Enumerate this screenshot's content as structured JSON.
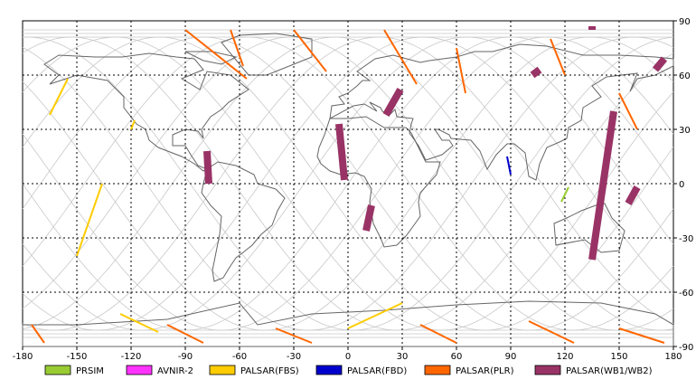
{
  "map": {
    "projection": "equirectangular",
    "lon_range": [
      -180,
      180
    ],
    "lat_range": [
      -90,
      90
    ],
    "lon_ticks": [
      -180,
      -150,
      -120,
      -90,
      -60,
      -30,
      0,
      30,
      60,
      90,
      120,
      150,
      180
    ],
    "lat_ticks": [
      90,
      60,
      30,
      0,
      -30,
      -60,
      -90
    ],
    "grid": "dotted",
    "colors": {
      "background": "#ffffff",
      "coast": "#666666",
      "orbit_track": "#c8c8c8",
      "grid": "#000000"
    }
  },
  "legend": {
    "items": [
      {
        "label": "PRSIM",
        "color": "#99cc33"
      },
      {
        "label": "AVNIR-2",
        "color": "#ff33ff"
      },
      {
        "label": "PALSAR(FBS)",
        "color": "#ffcc00"
      },
      {
        "label": "PALSAR(FBD)",
        "color": "#0000cc"
      },
      {
        "label": "PALSAR(PLR)",
        "color": "#ff6600"
      },
      {
        "label": "PALSAR(WB1/WB2)",
        "color": "#993366"
      }
    ]
  },
  "acquisitions": {
    "wb": [
      {
        "lon": [
          -77,
          -78
        ],
        "lat": [
          0,
          18
        ]
      },
      {
        "lon": [
          -2,
          -5
        ],
        "lat": [
          2,
          33
        ]
      },
      {
        "lon": [
          29,
          21
        ],
        "lat": [
          52,
          38
        ]
      },
      {
        "lon": [
          13,
          10
        ],
        "lat": [
          -12,
          -26
        ]
      },
      {
        "lon": [
          147,
          135
        ],
        "lat": [
          40,
          -42
        ]
      },
      {
        "lon": [
          106,
          102
        ],
        "lat": [
          63,
          60
        ]
      },
      {
        "lon": [
          175,
          170
        ],
        "lat": [
          69,
          63
        ]
      },
      {
        "lon": [
          160,
          155
        ],
        "lat": [
          -2,
          -11
        ]
      },
      {
        "lon": [
          135,
          135
        ],
        "lat": [
          87,
          85
        ]
      }
    ],
    "fbs": [
      {
        "lon": [
          -155,
          -165
        ],
        "lat": [
          58,
          38
        ]
      },
      {
        "lon": [
          -120,
          -118
        ],
        "lat": [
          30,
          35
        ]
      },
      {
        "lon": [
          -136,
          -150
        ],
        "lat": [
          0,
          -40
        ]
      },
      {
        "lon": [
          -126,
          -105
        ],
        "lat": [
          -72,
          -82
        ]
      },
      {
        "lon": [
          30,
          0
        ],
        "lat": [
          -66,
          -80
        ]
      }
    ],
    "fbd": [
      {
        "lon": [
          88,
          90
        ],
        "lat": [
          15,
          5
        ]
      }
    ],
    "plr": [
      {
        "lon": [
          -90,
          -56
        ],
        "lat": [
          85,
          58
        ]
      },
      {
        "lon": [
          -65,
          -58
        ],
        "lat": [
          85,
          65
        ]
      },
      {
        "lon": [
          -30,
          -12
        ],
        "lat": [
          85,
          62
        ]
      },
      {
        "lon": [
          20,
          38
        ],
        "lat": [
          85,
          55
        ]
      },
      {
        "lon": [
          60,
          65
        ],
        "lat": [
          75,
          50
        ]
      },
      {
        "lon": [
          112,
          120
        ],
        "lat": [
          80,
          60
        ]
      },
      {
        "lon": [
          150,
          160
        ],
        "lat": [
          50,
          30
        ]
      },
      {
        "lon": [
          -175,
          -168
        ],
        "lat": [
          -78,
          -88
        ]
      },
      {
        "lon": [
          -100,
          -80
        ],
        "lat": [
          -78,
          -88
        ]
      },
      {
        "lon": [
          -40,
          -20
        ],
        "lat": [
          -80,
          -88
        ]
      },
      {
        "lon": [
          40,
          60
        ],
        "lat": [
          -78,
          -88
        ]
      },
      {
        "lon": [
          100,
          125
        ],
        "lat": [
          -76,
          -88
        ]
      },
      {
        "lon": [
          150,
          175
        ],
        "lat": [
          -80,
          -88
        ]
      }
    ],
    "prism": [
      {
        "lon": [
          122,
          118
        ],
        "lat": [
          -2,
          -10
        ]
      }
    ]
  }
}
